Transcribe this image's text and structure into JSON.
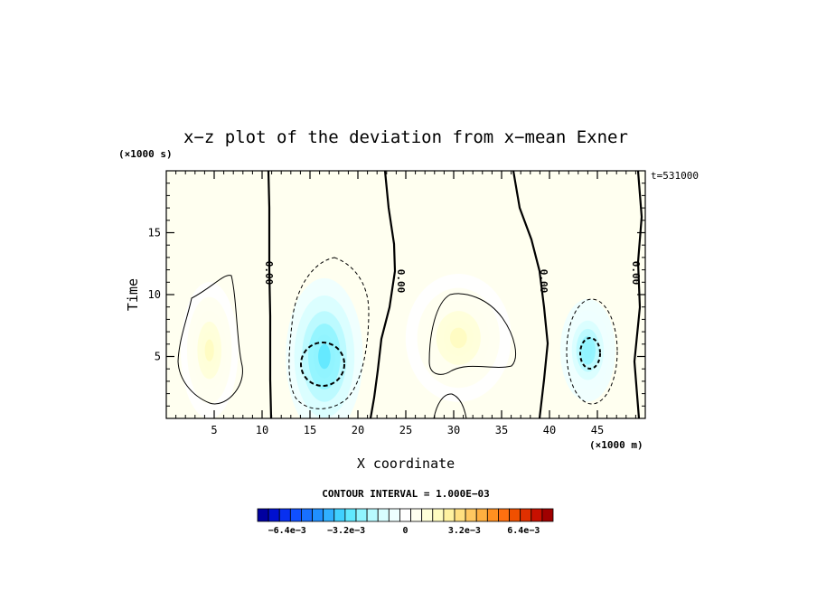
{
  "chart_data": {
    "type": "heatmap",
    "title": "x−z plot of the deviation from x−mean Exner",
    "xlabel": "X coordinate",
    "ylabel": "Time",
    "x_unit": "(×1000 m)",
    "y_unit": "(×1000 s)",
    "time_label": "t=531000",
    "xlim": [
      0,
      50
    ],
    "ylim": [
      0,
      20
    ],
    "x_ticks": [
      5,
      10,
      15,
      20,
      25,
      30,
      35,
      40,
      45
    ],
    "y_ticks": [
      5,
      10,
      15
    ],
    "contour_interval_text": "CONTOUR INTERVAL = 1.000E−03",
    "colorbar": {
      "min": -0.008,
      "max": 0.008,
      "tick_values": [
        -0.0064,
        -0.0032,
        0,
        0.0032,
        0.0064
      ],
      "tick_labels": [
        "−6.4e−3",
        "−3.2e−3",
        "0",
        "3.2e−3",
        "6.4e−3"
      ],
      "colors": [
        "#0000a0",
        "#0010d0",
        "#0830f0",
        "#1050ff",
        "#1870ff",
        "#2090ff",
        "#30b0ff",
        "#40d0ff",
        "#60e8ff",
        "#90f4ff",
        "#b8faff",
        "#d8feff",
        "#eeffff",
        "#ffffff",
        "#fffff0",
        "#ffffd8",
        "#fffcc0",
        "#fff2a0",
        "#ffe080",
        "#ffc860",
        "#ffb040",
        "#ff9020",
        "#ff7010",
        "#f05000",
        "#e03000",
        "#c81000",
        "#a00000"
      ]
    },
    "zero_contour_label": "0.00",
    "features": [
      {
        "sign": "positive",
        "x": 4.5,
        "y": 5.5,
        "sx": 2.6,
        "sy": 4.8,
        "amplitude": 0.0017
      },
      {
        "sign": "negative",
        "x": 16.5,
        "y": 5.0,
        "sx": 3.5,
        "sy": 5.5,
        "amplitude": -0.0032
      },
      {
        "sign": "positive",
        "x": 30.5,
        "y": 6.5,
        "sx": 4.8,
        "sy": 4.5,
        "amplitude": 0.0015
      },
      {
        "sign": "negative",
        "x": 44.0,
        "y": 5.5,
        "sx": 2.5,
        "sy": 3.6,
        "amplitude": -0.0026
      }
    ]
  }
}
